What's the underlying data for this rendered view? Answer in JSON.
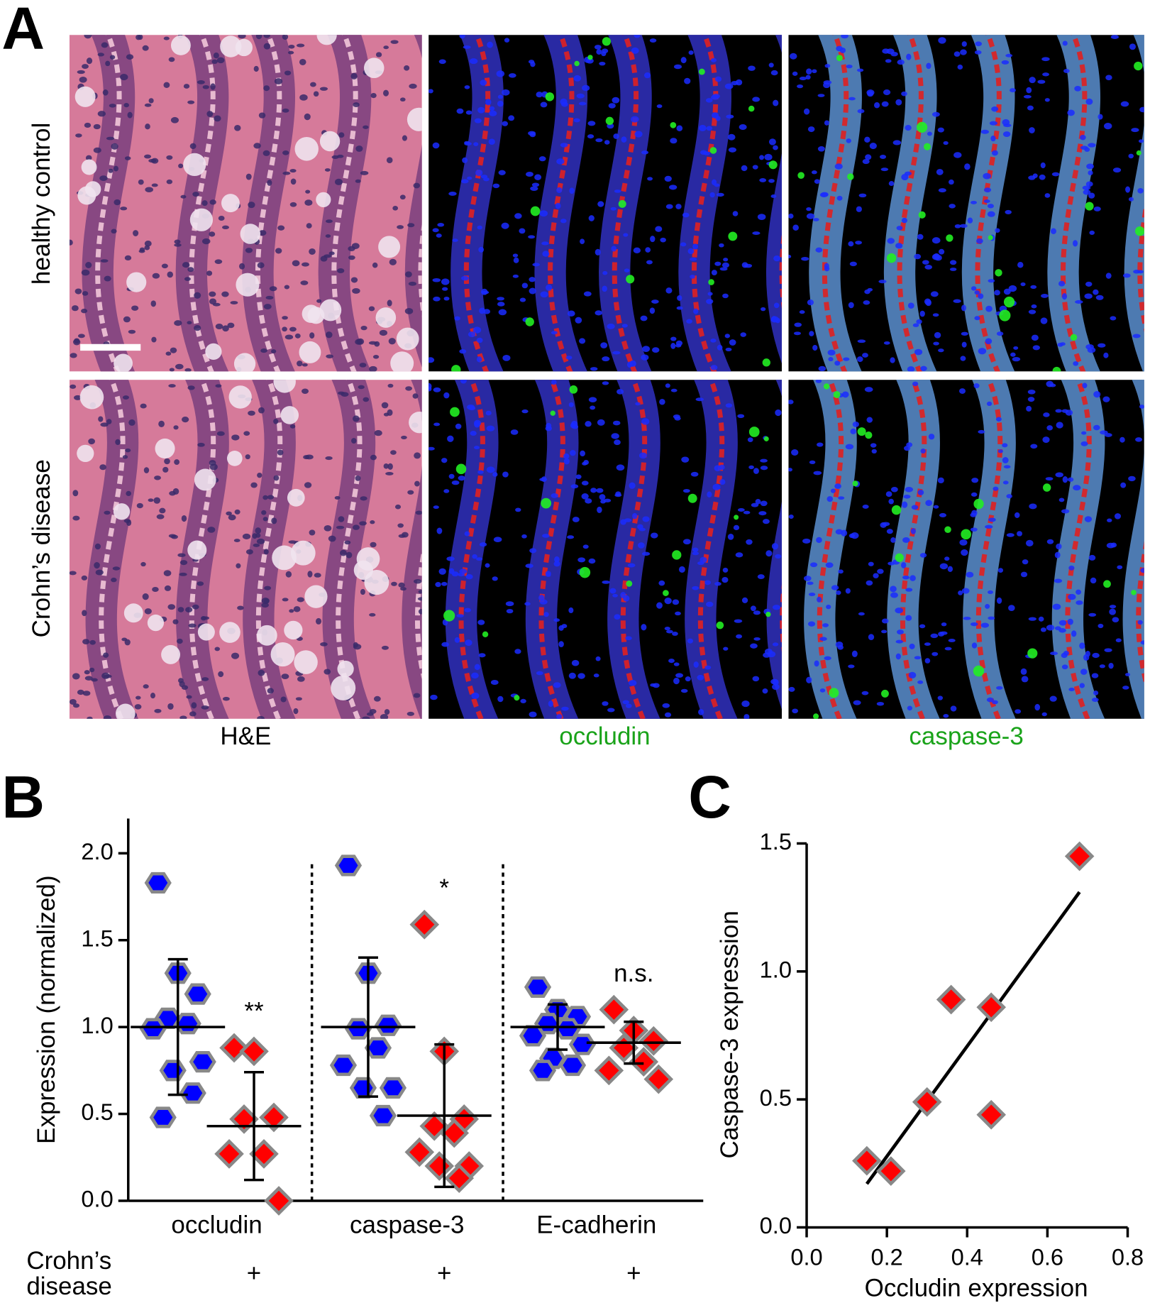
{
  "figure": {
    "panel_labels": [
      "A",
      "B",
      "C"
    ],
    "row_labels": [
      "healthy control",
      "Crohn’s disease"
    ],
    "column_labels": [
      "H&E",
      "occludin",
      "caspase-3"
    ]
  },
  "chart_data": [
    {
      "type": "dotplot",
      "ylabel": "Expression (normalized)",
      "categories": [
        "occludin",
        "caspase-3",
        "E-cadherin"
      ],
      "ylim": [
        0,
        2.2
      ],
      "yticks": [
        {
          "value": 0,
          "label": "0.0"
        },
        0.5,
        {
          "value": 1,
          "label": "1.0"
        },
        1.5,
        {
          "value": 2,
          "label": "2.0"
        }
      ],
      "group_label": [
        "Crohn’s",
        "disease"
      ],
      "group_marks": [
        "+",
        "+",
        "+"
      ],
      "annotations": [
        "**",
        "*",
        "n.s."
      ],
      "series": [
        {
          "color": "#0000ff",
          "marker": "hexagon",
          "values": [
            [
              1.83,
              1.31,
              1.19,
              1.05,
              1.02,
              0.99,
              0.8,
              0.75,
              0.62,
              0.48
            ],
            [
              1.93,
              1.31,
              1.01,
              0.99,
              0.88,
              0.78,
              0.65,
              0.65,
              0.49
            ],
            [
              1.23,
              1.1,
              1.06,
              1.02,
              0.99,
              0.95,
              0.9,
              0.82,
              0.78,
              0.75
            ]
          ],
          "means": [
            1.0,
            1.0,
            1.0
          ],
          "errors": [
            0.39,
            0.4,
            0.13
          ]
        },
        {
          "color": "#ff0000",
          "marker": "diamond",
          "values": [
            [
              0.88,
              0.86,
              0.48,
              0.47,
              0.27,
              0.27,
              0.0
            ],
            [
              1.59,
              0.86,
              0.47,
              0.43,
              0.39,
              0.28,
              0.2,
              0.2,
              0.13
            ],
            [
              1.1,
              0.98,
              0.92,
              0.88,
              0.8,
              0.75,
              0.7
            ]
          ],
          "means": [
            0.43,
            0.49,
            0.91
          ],
          "errors": [
            0.31,
            0.41,
            0.12
          ]
        }
      ]
    },
    {
      "type": "scatter",
      "xlabel": "Occludin expression",
      "ylabel": "Caspase-3 expression",
      "color": "#ff0000",
      "x": [
        0.15,
        0.21,
        0.3,
        0.36,
        0.46,
        0.46,
        0.68
      ],
      "y": [
        0.26,
        0.22,
        0.49,
        0.89,
        0.86,
        0.44,
        1.45
      ],
      "fit": {
        "x": [
          0.15,
          0.68
        ],
        "y": [
          0.17,
          1.31
        ]
      },
      "xlim": [
        0,
        0.8
      ],
      "xticks": [
        {
          "value": 0,
          "label": "0.0"
        },
        0.2,
        0.4,
        0.6,
        0.8
      ],
      "ylim": [
        0,
        1.5
      ],
      "yticks": [
        {
          "value": 0,
          "label": "0.0"
        },
        0.5,
        {
          "value": 1,
          "label": "1.0"
        },
        1.5
      ]
    }
  ]
}
